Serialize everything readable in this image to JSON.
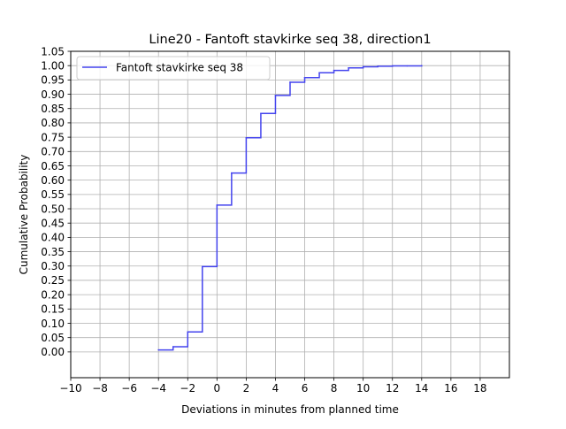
{
  "chart_data": {
    "type": "line",
    "step": "post",
    "title": "Line20 - Fantoft stavkirke seq 38, direction1",
    "xlabel": "Deviations in minutes from planned time",
    "ylabel": "Cumulative Probability",
    "xlim": [
      -10,
      20
    ],
    "ylim": [
      -0.09,
      1.05
    ],
    "x_ticks": [
      -10,
      -8,
      -6,
      -4,
      -2,
      0,
      2,
      4,
      6,
      8,
      10,
      12,
      14,
      16,
      18
    ],
    "x_tick_labels": [
      "−10",
      "−8",
      "−6",
      "−4",
      "−2",
      "0",
      "2",
      "4",
      "6",
      "8",
      "10",
      "12",
      "14",
      "16",
      "18"
    ],
    "y_ticks": [
      0.0,
      0.05,
      0.1,
      0.15,
      0.2,
      0.25,
      0.3,
      0.35,
      0.4,
      0.45,
      0.5,
      0.55,
      0.6,
      0.65,
      0.7,
      0.75,
      0.8,
      0.85,
      0.9,
      0.95,
      1.0,
      1.05
    ],
    "y_tick_labels": [
      "0.00",
      "0.05",
      "0.10",
      "0.15",
      "0.20",
      "0.25",
      "0.30",
      "0.35",
      "0.40",
      "0.45",
      "0.50",
      "0.55",
      "0.60",
      "0.65",
      "0.70",
      "0.75",
      "0.80",
      "0.85",
      "0.90",
      "0.95",
      "1.00",
      "1.05"
    ],
    "grid": true,
    "legend_position": "top-left",
    "series": [
      {
        "name": "Fantoft stavkirke seq 38",
        "color": "#4444ee",
        "x": [
          -4,
          -3,
          -2,
          -1,
          0,
          1,
          2,
          3,
          4,
          5,
          6,
          7,
          8,
          9,
          10,
          11,
          12,
          13,
          14
        ],
        "y": [
          0.007,
          0.018,
          0.07,
          0.298,
          0.513,
          0.625,
          0.748,
          0.833,
          0.896,
          0.942,
          0.958,
          0.975,
          0.983,
          0.992,
          0.996,
          0.998,
          0.999,
          0.999,
          1.0
        ]
      }
    ]
  }
}
